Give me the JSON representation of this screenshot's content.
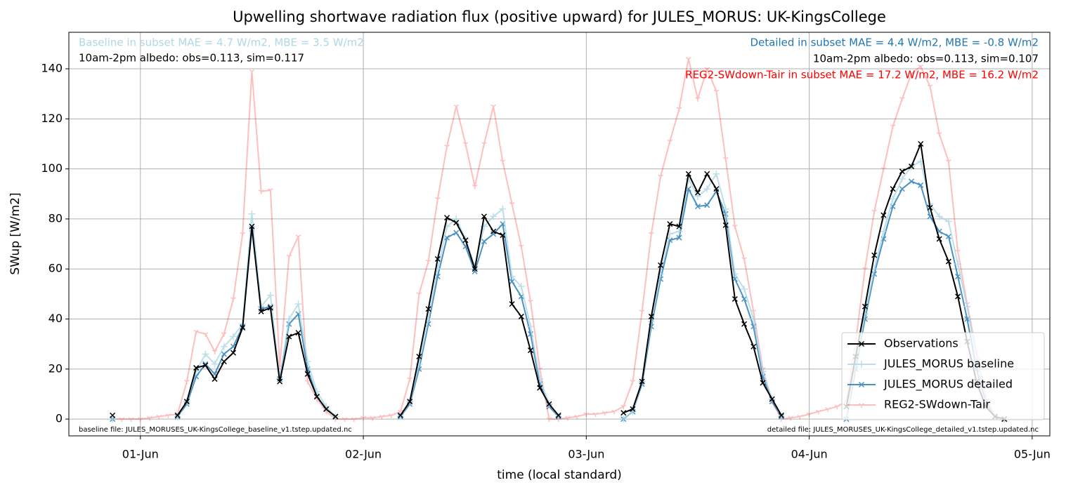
{
  "chart_data": {
    "type": "line",
    "title": "Upwelling shortwave radiation flux (positive upward) for JULES_MORUS: UK-KingsCollege",
    "xlabel": "time (local standard)",
    "ylabel": "SWup [W/m2]",
    "x": [
      -3,
      -2,
      -1,
      0,
      1,
      2,
      3,
      4,
      5,
      6,
      7,
      8,
      9,
      10,
      11,
      12,
      13,
      14,
      15,
      16,
      17,
      18,
      19,
      20,
      21,
      22,
      23,
      24,
      25,
      26,
      27,
      28,
      29,
      30,
      31,
      32,
      33,
      34,
      35,
      36,
      37,
      38,
      39,
      40,
      41,
      42,
      43,
      44,
      45,
      46,
      47,
      48,
      49,
      50,
      51,
      52,
      53,
      54,
      55,
      56,
      57,
      58,
      59,
      60,
      61,
      62,
      63,
      64,
      65,
      66,
      67,
      68,
      69,
      70,
      71,
      72,
      73,
      74,
      75,
      76,
      77,
      78,
      79,
      80,
      81,
      82,
      83,
      84,
      85,
      86,
      87,
      88,
      89,
      90,
      91,
      92,
      93
    ],
    "xlim": [
      -7.7,
      97.9
    ],
    "xticks": [
      {
        "value": 0,
        "label": "01-Jun"
      },
      {
        "value": 24,
        "label": "02-Jun"
      },
      {
        "value": 48,
        "label": "03-Jun"
      },
      {
        "value": 72,
        "label": "04-Jun"
      },
      {
        "value": 96,
        "label": "05-Jun"
      }
    ],
    "ylim": [
      -6.7,
      154.6
    ],
    "yticks": [
      0,
      20,
      40,
      60,
      80,
      100,
      120,
      140
    ],
    "grid": true,
    "legend": "lower right",
    "series": [
      {
        "name": "Observations",
        "color": "#000000",
        "alpha": 1,
        "marker": "x",
        "values": [
          1.5,
          null,
          null,
          null,
          null,
          null,
          null,
          1.5,
          7,
          20.5,
          21.5,
          16,
          23,
          26.5,
          36.5,
          77,
          43,
          44.5,
          15,
          33,
          34.5,
          18,
          9,
          4,
          1,
          null,
          null,
          null,
          null,
          null,
          null,
          1.5,
          7,
          25,
          44,
          64,
          80.5,
          78.5,
          71.5,
          60,
          81,
          75,
          73.5,
          46,
          41,
          27.5,
          12.5,
          6,
          1.5,
          null,
          null,
          null,
          null,
          null,
          null,
          2.5,
          4,
          15,
          41,
          61.5,
          78,
          77,
          98,
          90.5,
          98,
          92,
          77.5,
          48,
          38,
          29,
          14.5,
          8,
          1.5,
          null,
          null,
          null,
          null,
          null,
          null,
          5,
          25,
          45,
          65.5,
          81.5,
          92,
          99,
          101,
          110,
          84.5,
          72,
          63,
          49,
          31,
          15,
          5,
          1,
          0
        ]
      },
      {
        "name": "JULES_MORUS baseline",
        "color": "#add8e6",
        "alpha": 0.8,
        "marker": "plus",
        "values": [
          0,
          null,
          null,
          null,
          null,
          null,
          null,
          1,
          7,
          19,
          26,
          22,
          29,
          33,
          38,
          82,
          45,
          49.5,
          16,
          40,
          46,
          23,
          11,
          5,
          1,
          null,
          null,
          null,
          null,
          null,
          null,
          1,
          7,
          22,
          40,
          60,
          77,
          80,
          72,
          61,
          77,
          81,
          84,
          57,
          53,
          37,
          16,
          6,
          1,
          null,
          null,
          null,
          null,
          null,
          null,
          0,
          3,
          15,
          39,
          58,
          74,
          75,
          96,
          89,
          92,
          98,
          84,
          58,
          52,
          40,
          19,
          8,
          1,
          null,
          null,
          null,
          null,
          null,
          null,
          1,
          22,
          42,
          60,
          75,
          88,
          96,
          101,
          103,
          86,
          81,
          79,
          62,
          45,
          24,
          8,
          1,
          0
        ]
      },
      {
        "name": "JULES_MORUS detailed",
        "color": "#1f77b4",
        "alpha": 0.8,
        "marker": "x",
        "values": [
          0,
          null,
          null,
          null,
          null,
          null,
          null,
          1,
          6,
          17,
          22,
          18,
          26,
          29,
          37,
          76,
          44,
          45,
          16,
          38,
          42,
          20,
          9,
          4,
          1,
          null,
          null,
          null,
          null,
          null,
          null,
          1,
          6,
          20,
          38,
          57,
          72.5,
          74.5,
          69,
          59,
          71,
          74,
          78,
          55,
          49,
          34,
          14,
          5,
          1,
          null,
          null,
          null,
          null,
          null,
          null,
          0,
          3,
          14,
          37,
          56,
          71.5,
          72.5,
          92,
          85,
          85.5,
          91,
          82,
          56,
          48,
          37,
          17,
          7,
          1,
          null,
          null,
          null,
          null,
          null,
          null,
          0,
          20,
          40,
          58,
          72,
          85,
          92,
          95,
          93.5,
          81,
          75,
          73,
          57,
          40,
          20,
          7,
          1,
          0
        ]
      },
      {
        "name": "REG2-SWdown-Tair",
        "color": "#ff0000",
        "alpha": 0.25,
        "marker": "tri",
        "values": [
          0,
          0,
          0,
          0,
          0.5,
          1,
          1.5,
          2,
          15,
          35,
          34,
          27,
          34,
          48,
          74,
          139,
          91,
          91.5,
          21,
          65,
          73,
          15,
          8,
          3,
          0,
          0,
          0,
          0.5,
          0.5,
          1,
          1.5,
          3,
          16,
          50,
          63,
          88,
          109,
          125,
          110,
          93,
          110,
          125,
          103,
          86,
          69,
          47,
          20,
          0,
          0,
          0.5,
          1,
          2,
          2,
          2.5,
          3,
          5,
          15,
          43,
          74,
          97,
          111,
          124,
          144,
          128,
          140,
          131,
          104,
          77,
          64,
          43,
          20,
          7,
          0,
          0.5,
          1,
          2,
          3,
          4,
          5,
          7,
          31,
          60,
          83,
          100,
          117,
          128,
          138,
          141,
          133,
          114,
          103,
          67,
          46,
          27,
          9,
          1,
          0
        ]
      }
    ],
    "annotations": [
      {
        "text": "Baseline in subset MAE = 4.7 W/m2, MBE = 3.5 W/m2",
        "color": "#add8e6"
      },
      {
        "text": "10am-2pm albedo: obs=0.113, sim=0.117",
        "color": "#000000"
      },
      {
        "text": "Detailed in subset MAE = 4.4 W/m2, MBE = -0.8 W/m2",
        "color": "#1f77b4"
      },
      {
        "text": "10am-2pm albedo: obs=0.113, sim=0.107",
        "color": "#000000"
      },
      {
        "text": "REG2-SWdown-Tair in subset MAE = 17.2 W/m2, MBE = 16.2 W/m2",
        "color": "#ff0000"
      },
      {
        "text": "baseline file: JULES_MORUSES_UK-KingsCollege_baseline_v1.tstep.updated.nc",
        "color": "#000000"
      },
      {
        "text": "detailed file: JULES_MORUSES_UK-KingsCollege_detailed_v1.tstep.updated.nc",
        "color": "#000000"
      }
    ]
  }
}
